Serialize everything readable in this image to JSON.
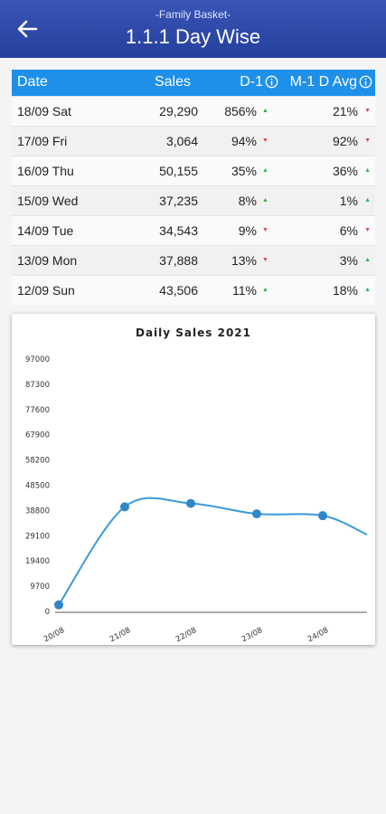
{
  "header": {
    "subtitle": "-Family Basket-",
    "title": "1.1.1 Day Wise"
  },
  "table": {
    "headers": {
      "date": "Date",
      "sales": "Sales",
      "d1": "D-1",
      "m1": "M-1 D Avg"
    },
    "rows": [
      {
        "date": "18/09 Sat",
        "sales": "29,290",
        "d1": "856%",
        "d1_trend": "up",
        "m1": "21%",
        "m1_trend": "down"
      },
      {
        "date": "17/09 Fri",
        "sales": "3,064",
        "d1": "94%",
        "d1_trend": "down",
        "m1": "92%",
        "m1_trend": "down"
      },
      {
        "date": "16/09 Thu",
        "sales": "50,155",
        "d1": "35%",
        "d1_trend": "up",
        "m1": "36%",
        "m1_trend": "up"
      },
      {
        "date": "15/09 Wed",
        "sales": "37,235",
        "d1": "8%",
        "d1_trend": "up",
        "m1": "1%",
        "m1_trend": "up"
      },
      {
        "date": "14/09 Tue",
        "sales": "34,543",
        "d1": "9%",
        "d1_trend": "down",
        "m1": "6%",
        "m1_trend": "down"
      },
      {
        "date": "13/09 Mon",
        "sales": "37,888",
        "d1": "13%",
        "d1_trend": "down",
        "m1": "3%",
        "m1_trend": "up"
      },
      {
        "date": "12/09 Sun",
        "sales": "43,506",
        "d1": "11%",
        "d1_trend": "up",
        "m1": "18%",
        "m1_trend": "up"
      }
    ]
  },
  "colors": {
    "header_top": "#3a55b6",
    "header_bottom": "#243f9c",
    "table_header": "#1e90ea",
    "trend_up": "#2db34a",
    "trend_down": "#e04646",
    "line": "#3a9ad9"
  },
  "icons": {
    "back": "arrow-left-icon",
    "info": "info-circle-icon",
    "trend_up": "triangle-up",
    "trend_down": "triangle-down"
  },
  "chart_data": {
    "type": "line",
    "title": "Daily Sales 2021",
    "x": [
      "20/08",
      "21/08",
      "22/08",
      "23/08",
      "24/08"
    ],
    "series": [
      {
        "values": [
          2500,
          40200,
          41500,
          37500,
          36800
        ]
      }
    ],
    "tail_value": 29500,
    "yticks": [
      0,
      9700,
      19400,
      29100,
      38800,
      48500,
      58200,
      67900,
      77600,
      87300,
      97000
    ],
    "ylim": [
      0,
      97000
    ],
    "xlabel": "",
    "ylabel": "",
    "grid": false,
    "smooth": true
  }
}
